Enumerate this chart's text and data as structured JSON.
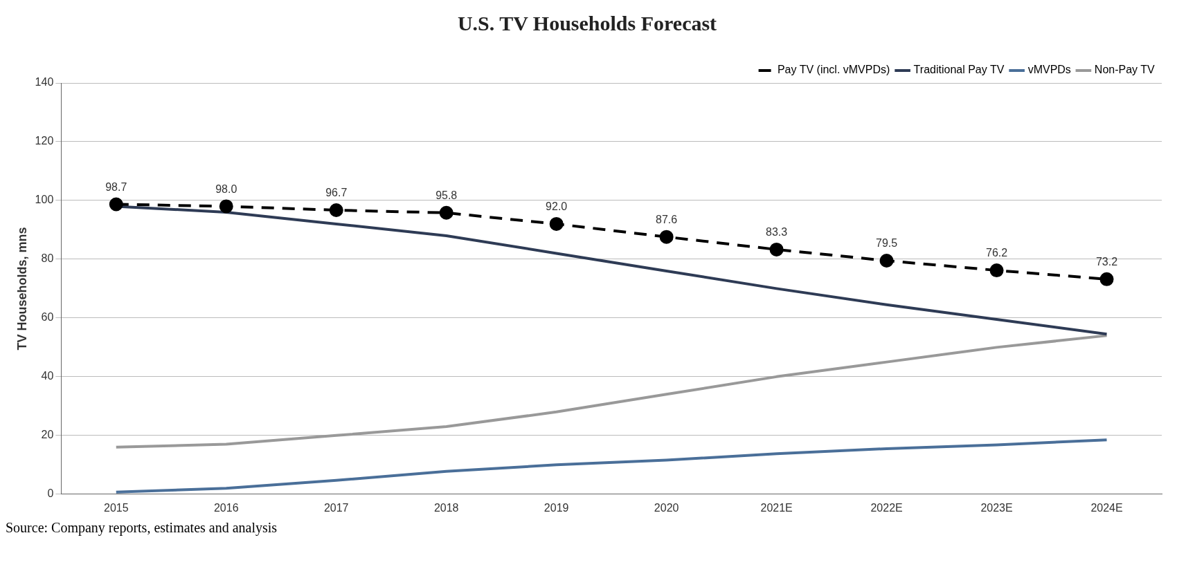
{
  "chart_data": {
    "type": "line",
    "title": "U.S. TV Households Forecast",
    "ylabel": "TV Households, mns",
    "categories": [
      "2015",
      "2016",
      "2017",
      "2018",
      "2019",
      "2020",
      "2021E",
      "2022E",
      "2023E",
      "2024E"
    ],
    "series": [
      {
        "name": "Pay TV (incl. vMVPDs)",
        "color": "#000000",
        "line_style": "dashed",
        "marker": "circle",
        "values": [
          98.7,
          98.0,
          96.7,
          95.8,
          92.0,
          87.6,
          83.3,
          79.5,
          76.2,
          73.2
        ],
        "value_labels": [
          "98.7",
          "98.0",
          "96.7",
          "95.8",
          "92.0",
          "87.6",
          "83.3",
          "79.5",
          "76.2",
          "73.2"
        ]
      },
      {
        "name": "Traditional Pay TV",
        "color": "#2e3b55",
        "line_style": "solid",
        "marker": "none",
        "values": [
          98,
          96,
          92,
          88,
          82,
          76,
          70,
          64.5,
          59.5,
          54.5
        ]
      },
      {
        "name": "vMVPDs",
        "color": "#4a6f99",
        "line_style": "solid",
        "marker": "none",
        "values": [
          0.7,
          2,
          4.7,
          7.8,
          10,
          11.6,
          13.8,
          15.5,
          16.8,
          18.5
        ]
      },
      {
        "name": "Non-Pay TV",
        "color": "#999999",
        "line_style": "solid",
        "marker": "none",
        "values": [
          16,
          17,
          20,
          23,
          28,
          34,
          40,
          45,
          50,
          54
        ]
      }
    ],
    "ylim": [
      0,
      140
    ],
    "yticks": [
      0,
      20,
      40,
      60,
      80,
      100,
      120,
      140
    ],
    "grid": "y",
    "legend": "top right",
    "annotations": [
      "Source: Company reports, estimates and analysis"
    ]
  }
}
